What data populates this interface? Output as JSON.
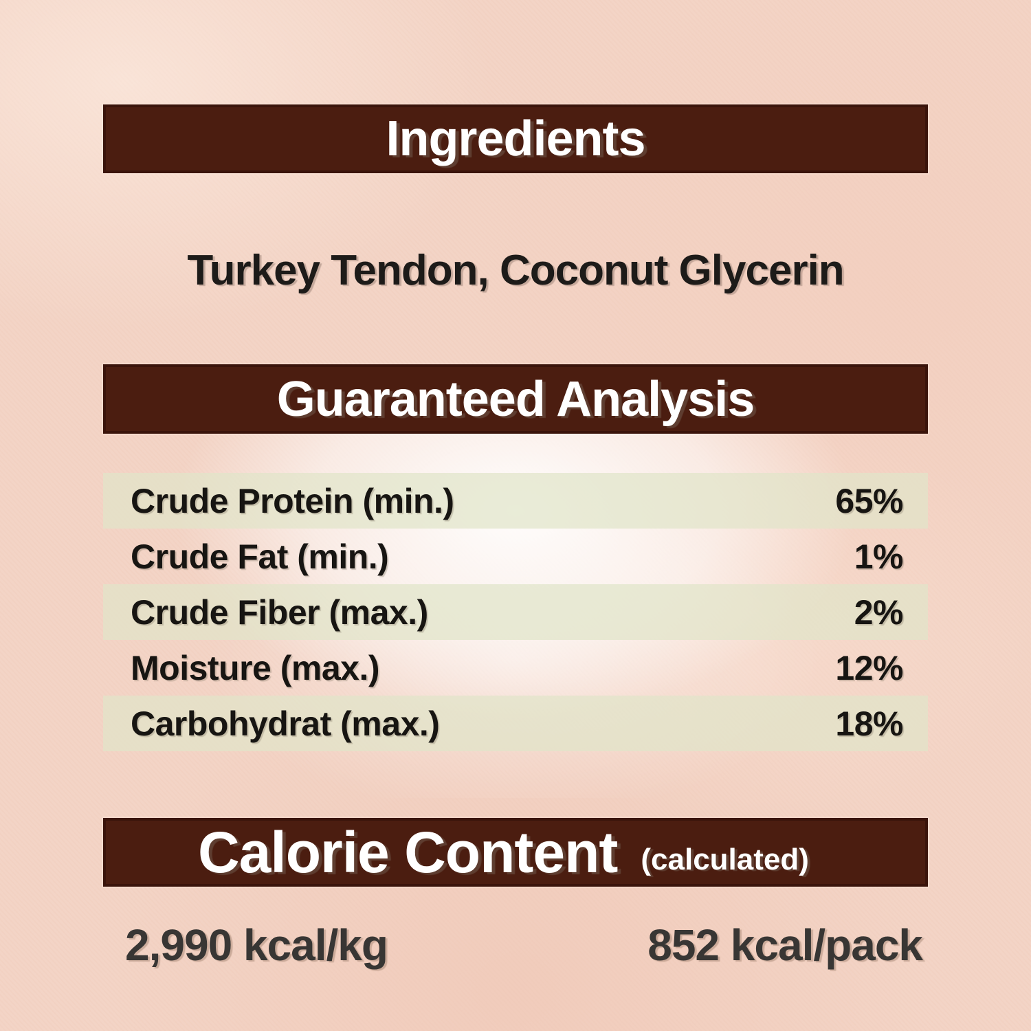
{
  "ingredients": {
    "header": "Ingredients",
    "items": "Turkey Tendon, Coconut Glycerin"
  },
  "guaranteed_analysis": {
    "header": "Guaranteed Analysis",
    "rows": [
      {
        "label": "Crude Protein (min.)",
        "value": "65%"
      },
      {
        "label": "Crude Fat (min.)",
        "value": "1%"
      },
      {
        "label": "Crude Fiber (max.)",
        "value": "2%"
      },
      {
        "label": "Moisture (max.)",
        "value": "12%"
      },
      {
        "label": "Carbohydrat (max.)",
        "value": "18%"
      }
    ]
  },
  "calorie_content": {
    "header": "Calorie Content",
    "note": "(calculated)",
    "per_kg": "2,990 kcal/kg",
    "per_pack": "852 kcal/pack"
  },
  "colors": {
    "bar_brown": "#4b1d10",
    "bar_border": "#3a140b",
    "paper_pink": "#f3d3c4",
    "row_band_green": "#e7e8d2",
    "text_black": "#171512",
    "kcal_gray": "#383634",
    "header_text": "#ffffff"
  }
}
